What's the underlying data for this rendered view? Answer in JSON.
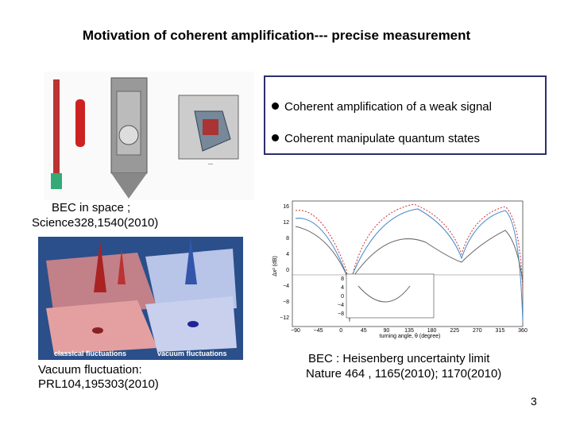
{
  "header": {
    "title": "Motivation of coherent amplification--- precise measurement"
  },
  "bullets": [
    "Coherent amplification of a weak signal",
    "Coherent manipulate quantum states"
  ],
  "captions": {
    "space": [
      "BEC in space ;",
      "Science328,1540(2010)"
    ],
    "vacuum": [
      "Vacuum fluctuation:",
      "PRL104,195303(2010)"
    ],
    "heisenberg": [
      "BEC : Heisenberg uncertainty  limit",
      "Nature 464 , 1165(2010); 1170(2010)"
    ]
  },
  "vacuum_figure": {
    "labels": [
      "classical fluctuations",
      "vacuum fluctuations"
    ]
  },
  "squeezing_figure": {
    "x_label": "turning angle, θ (degree)",
    "y_label": "Δx² (dB)",
    "xticks": [
      "−90",
      "−45",
      "0",
      "45",
      "90",
      "135",
      "180",
      "225",
      "270",
      "315",
      "360"
    ],
    "yticks": [
      "16",
      "12",
      "8",
      "4",
      "0",
      "−4",
      "−8",
      "−12"
    ],
    "inset_yticks": [
      "8",
      "4",
      "0",
      "−4",
      "−8"
    ]
  },
  "page_number": "3"
}
